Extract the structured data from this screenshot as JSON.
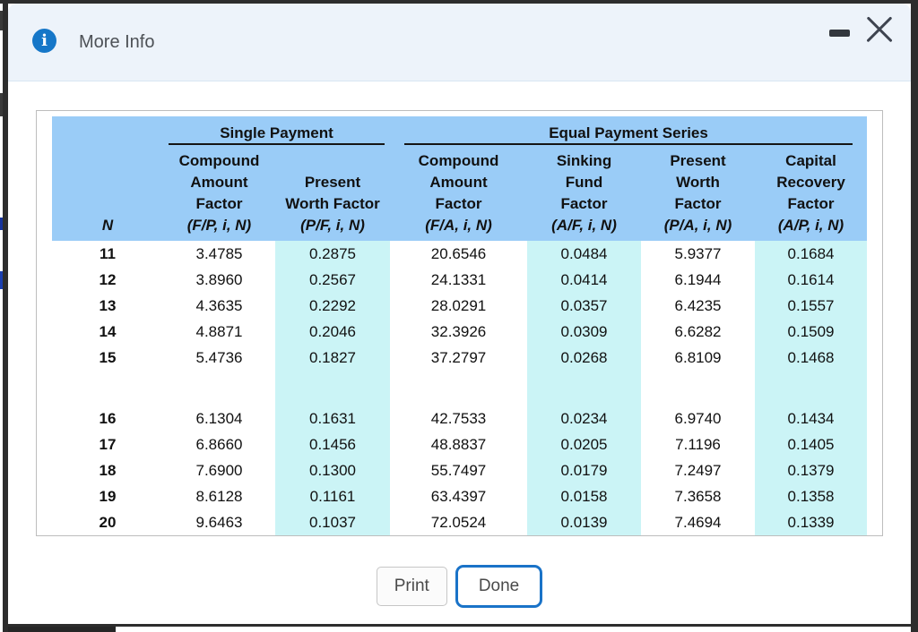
{
  "dialog": {
    "title": "More Info",
    "info_icon_glyph": "i",
    "buttons": {
      "print": "Print",
      "done": "Done"
    }
  },
  "table": {
    "group_headers": [
      {
        "label": "Single Payment"
      },
      {
        "label": "Equal Payment Series"
      }
    ],
    "columns": [
      {
        "key": "n",
        "lines": [
          "N"
        ]
      },
      {
        "key": "fp",
        "lines": [
          "Compound",
          "Amount",
          "Factor",
          "(F/P, i, N)"
        ]
      },
      {
        "key": "pf",
        "lines": [
          "Present",
          "Worth Factor",
          "(P/F, i, N)"
        ]
      },
      {
        "key": "fa",
        "lines": [
          "Compound",
          "Amount",
          "Factor",
          "(F/A, i, N)"
        ]
      },
      {
        "key": "af",
        "lines": [
          "Sinking",
          "Fund",
          "Factor",
          "(A/F, i, N)"
        ]
      },
      {
        "key": "pa",
        "lines": [
          "Present",
          "Worth",
          "Factor",
          "(P/A, i, N)"
        ]
      },
      {
        "key": "ap",
        "lines": [
          "Capital",
          "Recovery",
          "Factor",
          "(A/P, i, N)"
        ]
      }
    ],
    "rows": [
      {
        "n": "11",
        "fp": "3.4785",
        "pf": "0.2875",
        "fa": "20.6546",
        "af": "0.0484",
        "pa": "5.9377",
        "ap": "0.1684"
      },
      {
        "n": "12",
        "fp": "3.8960",
        "pf": "0.2567",
        "fa": "24.1331",
        "af": "0.0414",
        "pa": "6.1944",
        "ap": "0.1614"
      },
      {
        "n": "13",
        "fp": "4.3635",
        "pf": "0.2292",
        "fa": "28.0291",
        "af": "0.0357",
        "pa": "6.4235",
        "ap": "0.1557"
      },
      {
        "n": "14",
        "fp": "4.8871",
        "pf": "0.2046",
        "fa": "32.3926",
        "af": "0.0309",
        "pa": "6.6282",
        "ap": "0.1509"
      },
      {
        "n": "15",
        "fp": "5.4736",
        "pf": "0.1827",
        "fa": "37.2797",
        "af": "0.0268",
        "pa": "6.8109",
        "ap": "0.1468"
      },
      {
        "n": "16",
        "fp": "6.1304",
        "pf": "0.1631",
        "fa": "42.7533",
        "af": "0.0234",
        "pa": "6.9740",
        "ap": "0.1434"
      },
      {
        "n": "17",
        "fp": "6.8660",
        "pf": "0.1456",
        "fa": "48.8837",
        "af": "0.0205",
        "pa": "7.1196",
        "ap": "0.1405"
      },
      {
        "n": "18",
        "fp": "7.6900",
        "pf": "0.1300",
        "fa": "55.7497",
        "af": "0.0179",
        "pa": "7.2497",
        "ap": "0.1379"
      },
      {
        "n": "19",
        "fp": "8.6128",
        "pf": "0.1161",
        "fa": "63.4397",
        "af": "0.0158",
        "pa": "7.3658",
        "ap": "0.1358"
      },
      {
        "n": "20",
        "fp": "9.6463",
        "pf": "0.1037",
        "fa": "72.0524",
        "af": "0.0139",
        "pa": "7.4694",
        "ap": "0.1339"
      }
    ]
  },
  "colors": {
    "titlebar_bg": "#edf3fa",
    "header_blue": "#9accf7",
    "stripe_cyan": "#cbf4f6",
    "info_icon_blue": "#1677c8",
    "done_border_blue": "#1a73c8",
    "frame_dark": "#2d2d2d",
    "table_border": "#bdbdbd",
    "title_text": "#4d5156",
    "button_text": "#4a4a4a"
  }
}
